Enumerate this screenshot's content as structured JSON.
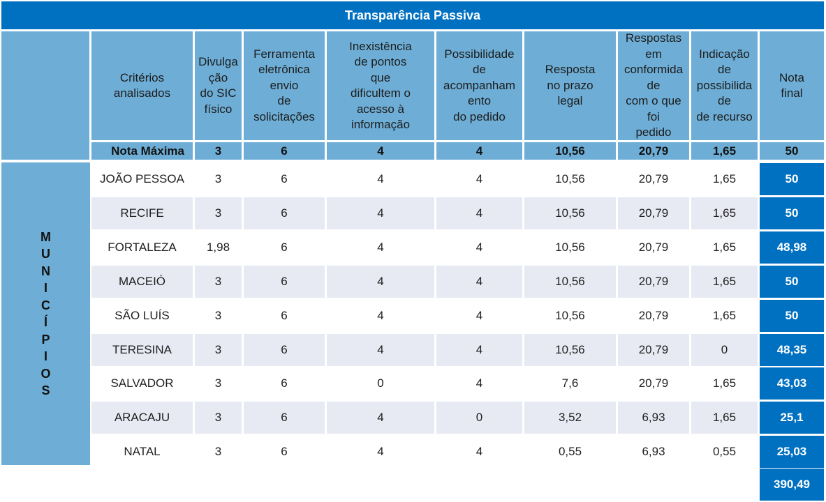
{
  "title": "Transparência Passiva",
  "headers": [
    "Critérios\nanalisados",
    "Divulga\nção\ndo SIC\nfísico",
    "Ferramenta\neletrônica\nenvio\nde\nsolicitações",
    "Inexistência\nde pontos\nque\ndificultem o\nacesso à\ninformação",
    "Possibilidade\nde\nacompanham\nento\ndo pedido",
    "Resposta\nno prazo\nlegal",
    "Respostas\nem\nconformida\nde\ncom o que\nfoi\npedido",
    "Indicação\nde\npossibilida\nde\nde recurso",
    "Nota\nfinal"
  ],
  "nota_maxima": [
    "Nota Máxima",
    "3",
    "6",
    "4",
    "4",
    "10,56",
    "20,79",
    "1,65",
    "50"
  ],
  "side_label": [
    "M",
    "U",
    "N",
    "I",
    "C",
    "Í",
    "P",
    "I",
    "O",
    "S"
  ],
  "rows": [
    [
      "JOÃO PESSOA",
      "3",
      "6",
      "4",
      "4",
      "10,56",
      "20,79",
      "1,65",
      "50"
    ],
    [
      "RECIFE",
      "3",
      "6",
      "4",
      "4",
      "10,56",
      "20,79",
      "1,65",
      "50"
    ],
    [
      "FORTALEZA",
      "1,98",
      "6",
      "4",
      "4",
      "10,56",
      "20,79",
      "1,65",
      "48,98"
    ],
    [
      "MACEIÓ",
      "3",
      "6",
      "4",
      "4",
      "10,56",
      "20,79",
      "1,65",
      "50"
    ],
    [
      "SÃO LUÍS",
      "3",
      "6",
      "4",
      "4",
      "10,56",
      "20,79",
      "1,65",
      "50"
    ],
    [
      "TERESINA",
      "3",
      "6",
      "4",
      "4",
      "10,56",
      "20,79",
      "0",
      "48,35"
    ],
    [
      "SALVADOR",
      "3",
      "6",
      "0",
      "4",
      "7,6",
      "20,79",
      "1,65",
      "43,03"
    ],
    [
      "ARACAJU",
      "3",
      "6",
      "4",
      "0",
      "3,52",
      "6,93",
      "1,65",
      "25,1"
    ],
    [
      "NATAL",
      "3",
      "6",
      "4",
      "4",
      "0,55",
      "6,93",
      "0,55",
      "25,03"
    ]
  ],
  "total": "390,49",
  "colors": {
    "title_bg": "#0070c0",
    "header_bg": "#6eaed6",
    "row_alt_bg": "#e8eaf3",
    "final_bg": "#0070c0"
  }
}
